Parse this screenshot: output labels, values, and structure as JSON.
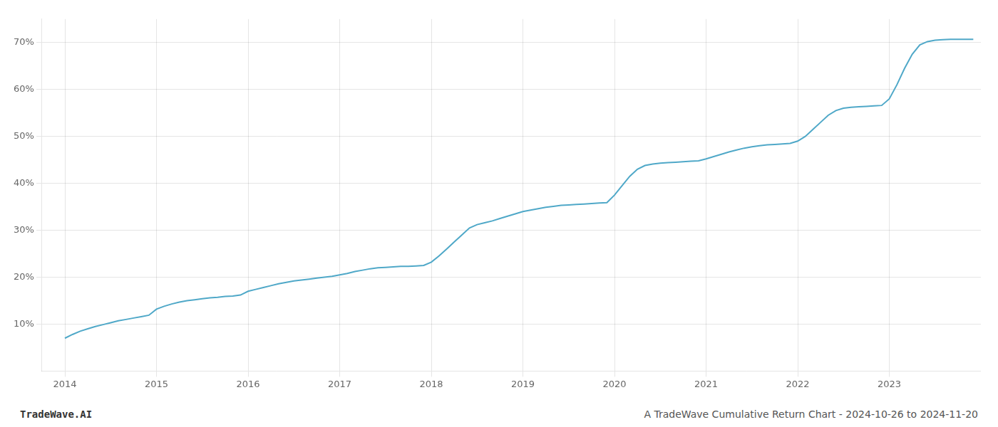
{
  "chart_data": {
    "type": "line",
    "x": [
      2014.0,
      2014.083,
      2014.167,
      2014.25,
      2014.333,
      2014.417,
      2014.5,
      2014.583,
      2014.667,
      2014.75,
      2014.833,
      2014.917,
      2015.0,
      2015.083,
      2015.167,
      2015.25,
      2015.333,
      2015.417,
      2015.5,
      2015.583,
      2015.667,
      2015.75,
      2015.833,
      2015.917,
      2016.0,
      2016.083,
      2016.167,
      2016.25,
      2016.333,
      2016.417,
      2016.5,
      2016.583,
      2016.667,
      2016.75,
      2016.833,
      2016.917,
      2017.0,
      2017.083,
      2017.167,
      2017.25,
      2017.333,
      2017.417,
      2017.5,
      2017.583,
      2017.667,
      2017.75,
      2017.833,
      2017.917,
      2018.0,
      2018.083,
      2018.167,
      2018.25,
      2018.333,
      2018.417,
      2018.5,
      2018.583,
      2018.667,
      2018.75,
      2018.833,
      2018.917,
      2019.0,
      2019.083,
      2019.167,
      2019.25,
      2019.333,
      2019.417,
      2019.5,
      2019.583,
      2019.667,
      2019.75,
      2019.833,
      2019.917,
      2020.0,
      2020.083,
      2020.167,
      2020.25,
      2020.333,
      2020.417,
      2020.5,
      2020.583,
      2020.667,
      2020.75,
      2020.833,
      2020.917,
      2021.0,
      2021.083,
      2021.167,
      2021.25,
      2021.333,
      2021.417,
      2021.5,
      2021.583,
      2021.667,
      2021.75,
      2021.833,
      2021.917,
      2022.0,
      2022.083,
      2022.167,
      2022.25,
      2022.333,
      2022.417,
      2022.5,
      2022.583,
      2022.667,
      2022.75,
      2022.833,
      2022.917,
      2023.0,
      2023.083,
      2023.167,
      2023.25,
      2023.333,
      2023.417,
      2023.5,
      2023.583,
      2023.667,
      2023.75,
      2023.833,
      2023.917
    ],
    "values": [
      7.0,
      7.8,
      8.5,
      9.0,
      9.5,
      9.9,
      10.3,
      10.7,
      11.0,
      11.3,
      11.6,
      11.9,
      13.2,
      13.8,
      14.3,
      14.7,
      15.0,
      15.2,
      15.4,
      15.6,
      15.7,
      15.9,
      16.0,
      16.2,
      17.0,
      17.4,
      17.8,
      18.2,
      18.6,
      18.9,
      19.2,
      19.4,
      19.6,
      19.8,
      20.0,
      20.2,
      20.5,
      20.8,
      21.2,
      21.5,
      21.8,
      22.0,
      22.1,
      22.2,
      22.3,
      22.3,
      22.4,
      22.5,
      23.2,
      24.5,
      26.0,
      27.5,
      29.0,
      30.5,
      31.2,
      31.6,
      32.0,
      32.5,
      33.0,
      33.5,
      34.0,
      34.3,
      34.6,
      34.9,
      35.1,
      35.3,
      35.4,
      35.5,
      35.6,
      35.7,
      35.8,
      35.9,
      37.5,
      39.5,
      41.5,
      43.0,
      43.8,
      44.1,
      44.3,
      44.4,
      44.5,
      44.6,
      44.7,
      44.8,
      45.2,
      45.7,
      46.2,
      46.7,
      47.1,
      47.5,
      47.8,
      48.0,
      48.2,
      48.3,
      48.4,
      48.5,
      49.0,
      50.0,
      51.5,
      53.0,
      54.5,
      55.5,
      56.0,
      56.2,
      56.3,
      56.4,
      56.5,
      56.6,
      58.0,
      61.0,
      64.5,
      67.5,
      69.5,
      70.2,
      70.5,
      70.6,
      70.7,
      70.7,
      70.7,
      70.7
    ],
    "color": "#4fa8c8",
    "xlim": [
      2013.75,
      2024.0
    ],
    "xticks": [
      2014,
      2015,
      2016,
      2017,
      2018,
      2019,
      2020,
      2021,
      2022,
      2023
    ],
    "ylim": [
      0,
      75
    ],
    "yticks": [
      {
        "value": 10,
        "label": "10%"
      },
      {
        "value": 20,
        "label": "20%"
      },
      {
        "value": 30,
        "label": "30%"
      },
      {
        "value": 40,
        "label": "40%"
      },
      {
        "value": 50,
        "label": "50%"
      },
      {
        "value": 60,
        "label": "60%"
      },
      {
        "value": 70,
        "label": "70%"
      }
    ],
    "grid": true,
    "annotations": [
      "TradeWave.AI",
      "A TradeWave Cumulative Return Chart - 2024-10-26 to 2024-11-20"
    ]
  }
}
